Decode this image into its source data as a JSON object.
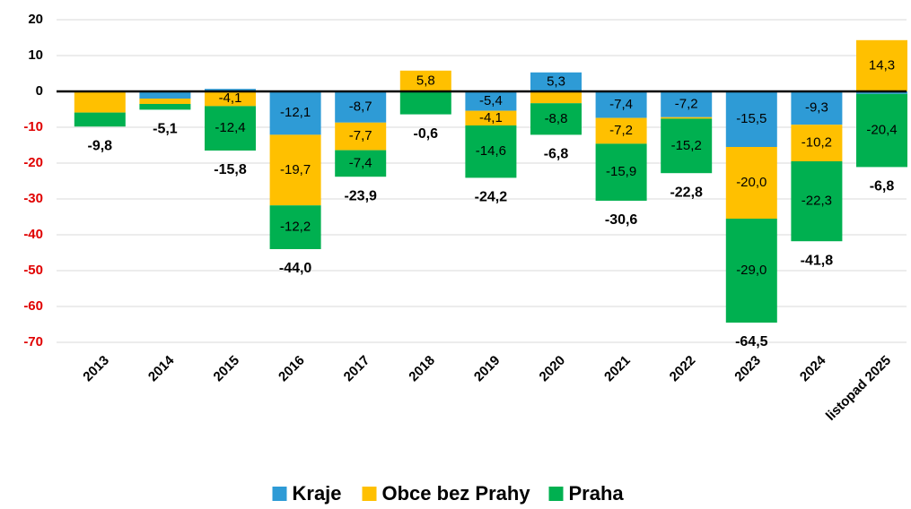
{
  "chart_data": {
    "type": "stacked_bar",
    "categories": [
      "2013",
      "2014",
      "2015",
      "2016",
      "2017",
      "2018",
      "2019",
      "2020",
      "2021",
      "2022",
      "2023",
      "2024",
      "listopad 2025"
    ],
    "series": [
      {
        "name": "Kraje",
        "color": "#2e9bd6",
        "values": [
          0,
          -2.0,
          0.7,
          -12.1,
          -8.7,
          0,
          -5.4,
          5.3,
          -7.4,
          -7.2,
          -15.5,
          -9.3,
          -0.7
        ],
        "value_labels": [
          null,
          null,
          null,
          "-12,1",
          "-8,7",
          null,
          "-5,4",
          "5,3",
          "-7,4",
          "-7,2",
          "-15,5",
          "-9,3",
          null
        ]
      },
      {
        "name": "Obce bez Prahy",
        "color": "#ffc000",
        "values": [
          -5.9,
          -1.5,
          -4.1,
          -19.7,
          -7.7,
          5.8,
          -4.1,
          -3.3,
          -7.2,
          -0.4,
          -20.0,
          -10.2,
          14.3
        ],
        "value_labels": [
          null,
          null,
          "-4,1",
          "-19,7",
          "-7,7",
          "5,8",
          "-4,1",
          null,
          "-7,2",
          null,
          "-20,0",
          "-10,2",
          "14,3"
        ]
      },
      {
        "name": "Praha",
        "color": "#00b050",
        "values": [
          -3.9,
          -1.6,
          -12.4,
          -12.2,
          -7.4,
          -6.4,
          -14.6,
          -8.8,
          -15.9,
          -15.2,
          -29.0,
          -22.3,
          -20.4
        ],
        "value_labels": [
          null,
          null,
          "-12,4",
          "-12,2",
          "-7,4",
          null,
          "-14,6",
          "-8,8",
          "-15,9",
          "-15,2",
          "-29,0",
          "-22,3",
          "-20,4"
        ]
      }
    ],
    "totals": {
      "values": [
        -9.8,
        -5.1,
        -15.8,
        -44.0,
        -23.9,
        -0.6,
        -24.2,
        -6.8,
        -30.6,
        -22.8,
        -64.5,
        -41.8,
        -6.8
      ],
      "value_labels": [
        "-9,8",
        "-5,1",
        "-15,8",
        "-44,0",
        "-23,9",
        "-0,6",
        "-24,2",
        "-6,8",
        "-30,6",
        "-22,8",
        "-64,5",
        "-41,8",
        "-6,8"
      ]
    },
    "ylim": [
      -70,
      20
    ],
    "yticks": [
      20,
      10,
      0,
      -10,
      -20,
      -30,
      -40,
      -50,
      -60,
      -70
    ],
    "grid": true,
    "negative_tick_color": "#e00000",
    "legend": "bottom"
  }
}
